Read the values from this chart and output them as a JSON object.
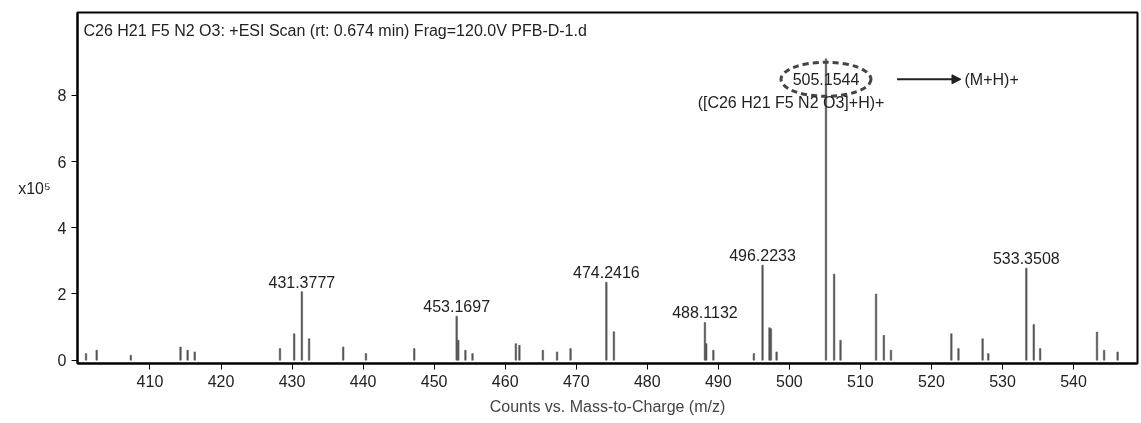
{
  "chart_data": {
    "type": "bar",
    "title": "C26 H21 F5 N2 O3: +ESI Scan (rt: 0.674 min) Frag=120.0V PFB-D-1.d",
    "xlabel": "Counts vs. Mass-to-Charge (m/z)",
    "ylabel": "x10⁵",
    "x": [
      401.0,
      402.5,
      407.3,
      414.3,
      415.3,
      416.3,
      428.3,
      430.3,
      431.3777,
      432.4,
      437.2,
      440.4,
      447.2,
      453.1697,
      453.4,
      454.4,
      455.4,
      461.5,
      462.0,
      465.3,
      467.3,
      469.2,
      474.2416,
      475.3,
      488.1132,
      488.3,
      489.3,
      495.0,
      496.2233,
      497.2,
      497.4,
      498.2,
      505.1544,
      506.3,
      507.2,
      512.2,
      513.3,
      514.3,
      522.8,
      523.8,
      527.2,
      528.0,
      533.3508,
      534.4,
      535.3,
      543.3,
      544.3,
      546.2
    ],
    "series": [
      {
        "color": "#555555",
        "values": [
          0.2,
          0.3,
          0.15,
          0.4,
          0.3,
          0.25,
          0.35,
          0.8,
          2.07,
          0.65,
          0.4,
          0.2,
          0.35,
          1.33,
          0.6,
          0.3,
          0.2,
          0.5,
          0.45,
          0.3,
          0.25,
          0.35,
          2.35,
          0.86,
          1.14,
          0.5,
          0.3,
          0.2,
          2.87,
          0.98,
          0.95,
          0.25,
          9.1,
          2.6,
          0.6,
          2.0,
          0.75,
          0.3,
          0.8,
          0.35,
          0.65,
          0.2,
          2.78,
          1.08,
          0.35,
          0.85,
          0.3,
          0.25
        ]
      }
    ],
    "xlim": [
      399.8,
      549
    ],
    "ylim": [
      -0.1,
      10.5
    ],
    "xticks": [
      410,
      420,
      430,
      440,
      450,
      460,
      470,
      480,
      490,
      500,
      510,
      520,
      530,
      540
    ],
    "yticks": [
      0,
      2,
      4,
      6,
      8
    ],
    "grid": false,
    "annotations": [
      {
        "text": "431.3777",
        "x": 431.3777,
        "y": 2.07
      },
      {
        "text": "453.1697",
        "x": 453.1697,
        "y": 1.33
      },
      {
        "text": "474.2416",
        "x": 474.2416,
        "y": 2.35
      },
      {
        "text": "488.1132",
        "x": 488.1132,
        "y": 1.14
      },
      {
        "text": "496.2233",
        "x": 496.2233,
        "y": 2.87
      },
      {
        "text": "505.1544",
        "x": 505.1544,
        "y": 9.1
      },
      {
        "text": "533.3508",
        "x": 533.3508,
        "y": 2.78
      },
      "([C26 H21 F5 N2 O3]+H)+",
      "(M+H)+"
    ]
  }
}
